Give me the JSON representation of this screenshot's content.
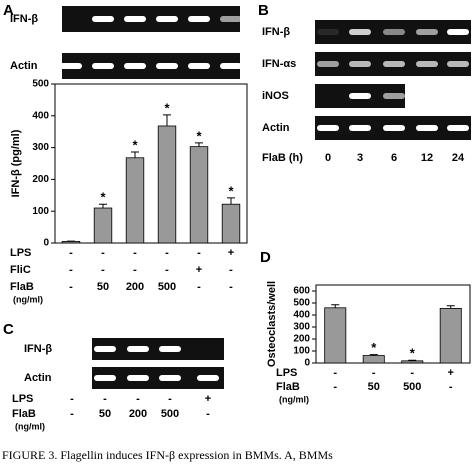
{
  "panel_letters": [
    "A",
    "B",
    "C",
    "D"
  ],
  "chart_data": [
    {
      "type": "bar",
      "ylabel": "IFN-β (pg/ml)",
      "categories": [
        null,
        null,
        null,
        null,
        null,
        null
      ],
      "values": [
        5,
        110,
        268,
        368,
        303,
        122
      ],
      "errors": [
        1,
        12,
        18,
        35,
        12,
        20
      ],
      "significance": [
        null,
        "*",
        "*",
        "*",
        "*",
        "*"
      ],
      "color": "#999999",
      "ylim": [
        0,
        500
      ],
      "yticks": [
        0,
        100,
        200,
        300,
        400,
        500
      ],
      "conditions": [
        {
          "label": "LPS",
          "values": [
            "-",
            "-",
            "-",
            "-",
            "-",
            "+"
          ]
        },
        {
          "label": "FliC",
          "values": [
            "-",
            "-",
            "-",
            "-",
            "+",
            "-"
          ]
        },
        {
          "label": "FlaB",
          "unit": "(ng/ml)",
          "values": [
            "-",
            "50",
            "200",
            "500",
            "-",
            "-"
          ]
        }
      ]
    },
    {
      "type": "bar",
      "ylabel": "Osteoclasts/well",
      "categories": [
        null,
        null,
        null,
        null
      ],
      "values": [
        460,
        62,
        18,
        455
      ],
      "errors": [
        25,
        8,
        5,
        22
      ],
      "significance": [
        null,
        "*",
        "*",
        null
      ],
      "color": "#999999",
      "ylim": [
        0,
        650
      ],
      "yticks": [
        0,
        100,
        200,
        300,
        400,
        500,
        600
      ],
      "conditions": [
        {
          "label": "LPS",
          "values": [
            "-",
            "-",
            "-",
            "+"
          ]
        },
        {
          "label": "FlaB",
          "unit": "(ng/ml)",
          "values": [
            "-",
            "50",
            "500",
            "-"
          ]
        }
      ]
    }
  ],
  "gels": [
    {
      "rows": [
        "IFN-β",
        "Actin"
      ]
    },
    {
      "rows": [
        "IFN-β",
        "IFN-αs",
        "iNOS",
        "Actin"
      ],
      "lane_title": "FlaB (h)",
      "lanes": [
        "0",
        "3",
        "6",
        "12",
        "24"
      ]
    },
    {
      "rows": [
        "IFN-β",
        "Actin"
      ],
      "conditions": [
        {
          "label": "LPS",
          "values": [
            "-",
            "-",
            "-",
            "-",
            "+"
          ]
        },
        {
          "label": "FlaB",
          "unit": "(ng/ml)",
          "values": [
            "-",
            "50",
            "200",
            "500",
            "-"
          ]
        }
      ]
    }
  ],
  "caption": "FIGURE 3. Flagellin induces IFN-β expression in BMMs. A, BMMs"
}
